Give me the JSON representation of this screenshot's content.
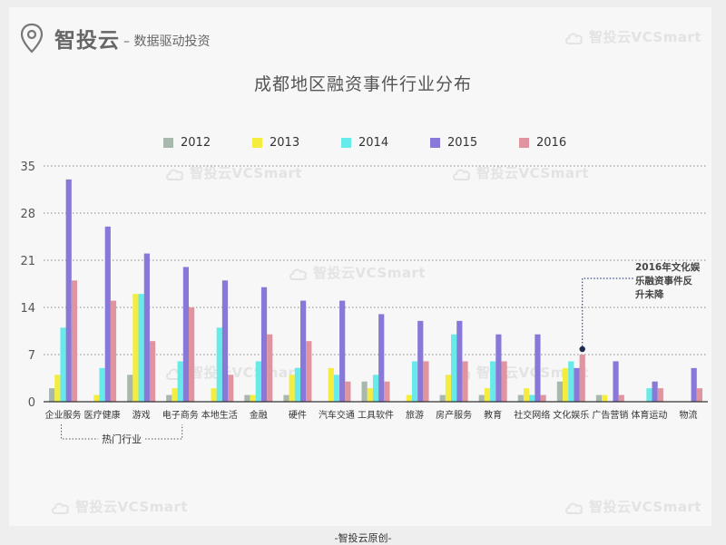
{
  "brand": {
    "name": "智投云",
    "tagline": "– 数据驱动投资",
    "icon": "location-pin-icon"
  },
  "watermark": {
    "text": "智投云VCSmart",
    "icon": "cloud-logo-icon"
  },
  "footer": "-智投云原创-",
  "annotation": {
    "text_lines": [
      "2016年文化娱",
      "乐融资事件反",
      "升未降"
    ]
  },
  "bracket_label": "热门行业",
  "colors": {
    "2012": "#a9b8ad",
    "2013": "#f4ec3f",
    "2014": "#67eaea",
    "2015": "#8878d8",
    "2016": "#e094a0"
  },
  "chart_data": {
    "type": "bar",
    "title": "成都地区融资事件行业分布",
    "xlabel": "",
    "ylabel": "",
    "ylim": [
      0,
      35
    ],
    "yticks": [
      0,
      7,
      14,
      21,
      28,
      35
    ],
    "grid": true,
    "legend_position": "top",
    "categories": [
      "企业服务",
      "医疗健康",
      "游戏",
      "电子商务",
      "本地生活",
      "金融",
      "硬件",
      "汽车交通",
      "工具软件",
      "旅游",
      "房产服务",
      "教育",
      "社交网络",
      "文化娱乐",
      "广告营销",
      "体育运动",
      "物流"
    ],
    "series": [
      {
        "name": "2012",
        "values": [
          2,
          0,
          4,
          1,
          0,
          1,
          1,
          0,
          3,
          0,
          1,
          1,
          1,
          3,
          1,
          0,
          0
        ]
      },
      {
        "name": "2013",
        "values": [
          4,
          1,
          16,
          2,
          2,
          1,
          4,
          5,
          2,
          1,
          4,
          2,
          2,
          5,
          1,
          0,
          0
        ]
      },
      {
        "name": "2014",
        "values": [
          11,
          5,
          16,
          6,
          11,
          6,
          5,
          4,
          4,
          6,
          10,
          6,
          1,
          6,
          0,
          2,
          0
        ]
      },
      {
        "name": "2015",
        "values": [
          33,
          26,
          22,
          20,
          18,
          17,
          15,
          15,
          13,
          12,
          12,
          10,
          10,
          5,
          6,
          3,
          5
        ]
      },
      {
        "name": "2016",
        "values": [
          18,
          15,
          9,
          14,
          4,
          10,
          9,
          3,
          3,
          6,
          6,
          6,
          1,
          7,
          1,
          2,
          2
        ]
      }
    ]
  }
}
